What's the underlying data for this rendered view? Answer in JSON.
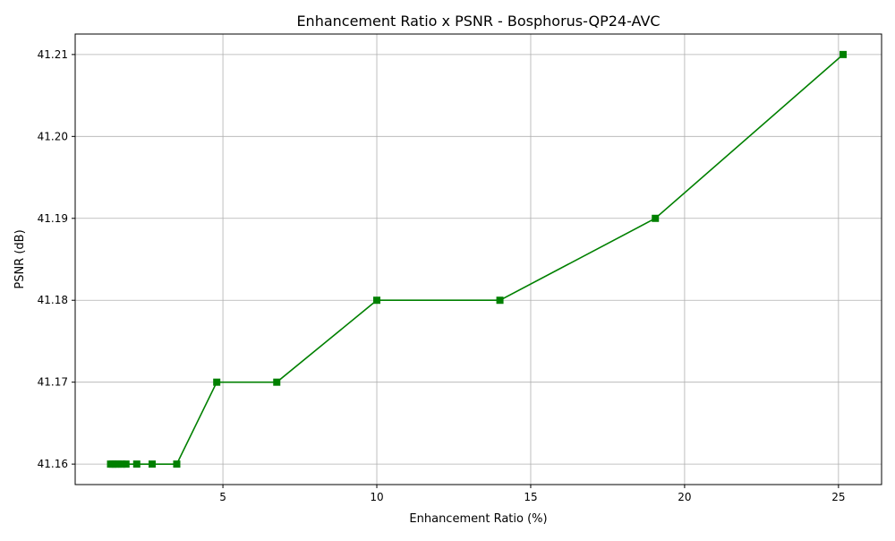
{
  "chart_data": {
    "type": "line",
    "title": "Enhancement Ratio x PSNR - Bosphorus-QP24-AVC",
    "xlabel": "Enhancement Ratio (%)",
    "ylabel": "PSNR (dB)",
    "xlim": [
      0.2,
      26.4
    ],
    "ylim": [
      41.1575,
      41.2125
    ],
    "xticks": [
      5,
      10,
      15,
      20,
      25
    ],
    "yticks": [
      41.16,
      41.17,
      41.18,
      41.19,
      41.2,
      41.21
    ],
    "ytick_labels": [
      "41.16",
      "41.17",
      "41.18",
      "41.19",
      "41.20",
      "41.21"
    ],
    "grid": true,
    "marker": "square",
    "color": "#008000",
    "series": [
      {
        "x": [
          1.35,
          1.42,
          1.5,
          1.6,
          1.72,
          1.85,
          2.2,
          2.7,
          3.5,
          4.8,
          6.75,
          10.0,
          14.0,
          19.05,
          25.15
        ],
        "y": [
          41.16,
          41.16,
          41.16,
          41.16,
          41.16,
          41.16,
          41.16,
          41.16,
          41.16,
          41.17,
          41.17,
          41.18,
          41.18,
          41.19,
          41.21
        ]
      }
    ]
  }
}
